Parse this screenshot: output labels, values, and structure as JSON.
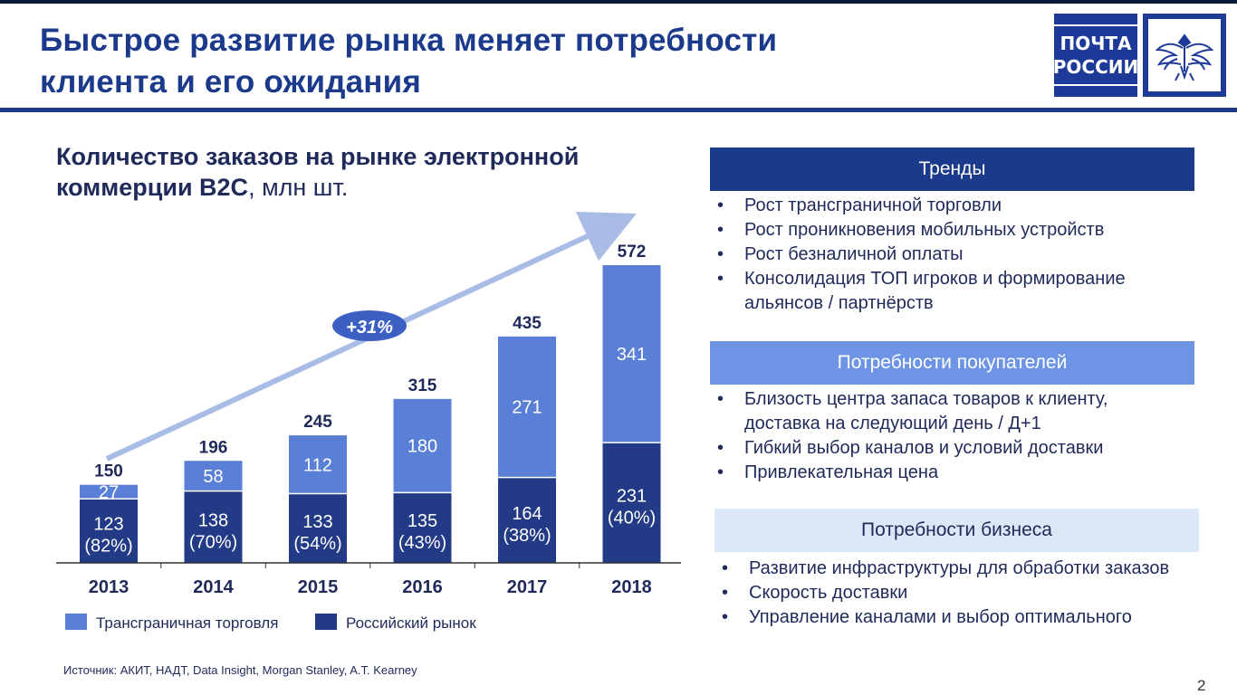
{
  "header": {
    "title_line1": "Быстрое развитие рынка меняет потребности",
    "title_line2": "клиента и его ожидания",
    "logo_line1": "ПОЧТА",
    "logo_line2": "РОССИИ",
    "accent_color": "#1c3a8c"
  },
  "chart_title_bold1": "Количество заказов на рынке электронной",
  "chart_title_bold2": "коммерции В2С",
  "chart_title_unit": ", млн шт.",
  "chart_data": {
    "type": "bar",
    "stacked": true,
    "categories": [
      "2013",
      "2014",
      "2015",
      "2016",
      "2017",
      "2018"
    ],
    "series": [
      {
        "name": "Российский рынок",
        "color": "#233a86",
        "values": [
          123,
          138,
          133,
          135,
          164,
          231
        ],
        "labels": [
          "123",
          "138",
          "133",
          "135",
          "164",
          "231"
        ],
        "share_labels": [
          "(82%)",
          "(70%)",
          "(54%)",
          "(43%)",
          "(38%)",
          "(40%)"
        ]
      },
      {
        "name": "Трансграничная торговля",
        "color": "#5a7fd6",
        "values": [
          27,
          58,
          112,
          180,
          271,
          341
        ],
        "labels": [
          "27",
          "58",
          "112",
          "180",
          "271",
          "341"
        ]
      }
    ],
    "totals": [
      150,
      196,
      245,
      315,
      435,
      572
    ],
    "growth_label": "+31%",
    "ylim": [
      0,
      572
    ],
    "grid": false,
    "legend_position": "bottom"
  },
  "legend": {
    "cross_border": "Трансграничная торговля",
    "russian": "Российский рынок"
  },
  "source": "Источник: АКИТ, НАДТ, Data Insight, Morgan Stanley, A.T. Kearney",
  "page_number": "2",
  "trends": {
    "header": "Тренды",
    "items": [
      "Рост трансграничной торговли",
      "Рост проникновения мобильных устройств",
      "Рост безналичной оплаты",
      "Консолидация ТОП игроков и формирование альянсов / партнёрств"
    ]
  },
  "buyers": {
    "header": "Потребности покупателей",
    "items": [
      "Близость центра запаса товаров к клиенту, доставка на следующий день / Д+1",
      "Гибкий выбор каналов и условий доставки",
      "Привлекательная цена"
    ]
  },
  "business": {
    "header": "Потребности бизнеса",
    "items": [
      "Развитие инфраструктуры для обработки заказов",
      "Скорость доставки",
      "Управление каналами и выбор оптимального"
    ]
  }
}
